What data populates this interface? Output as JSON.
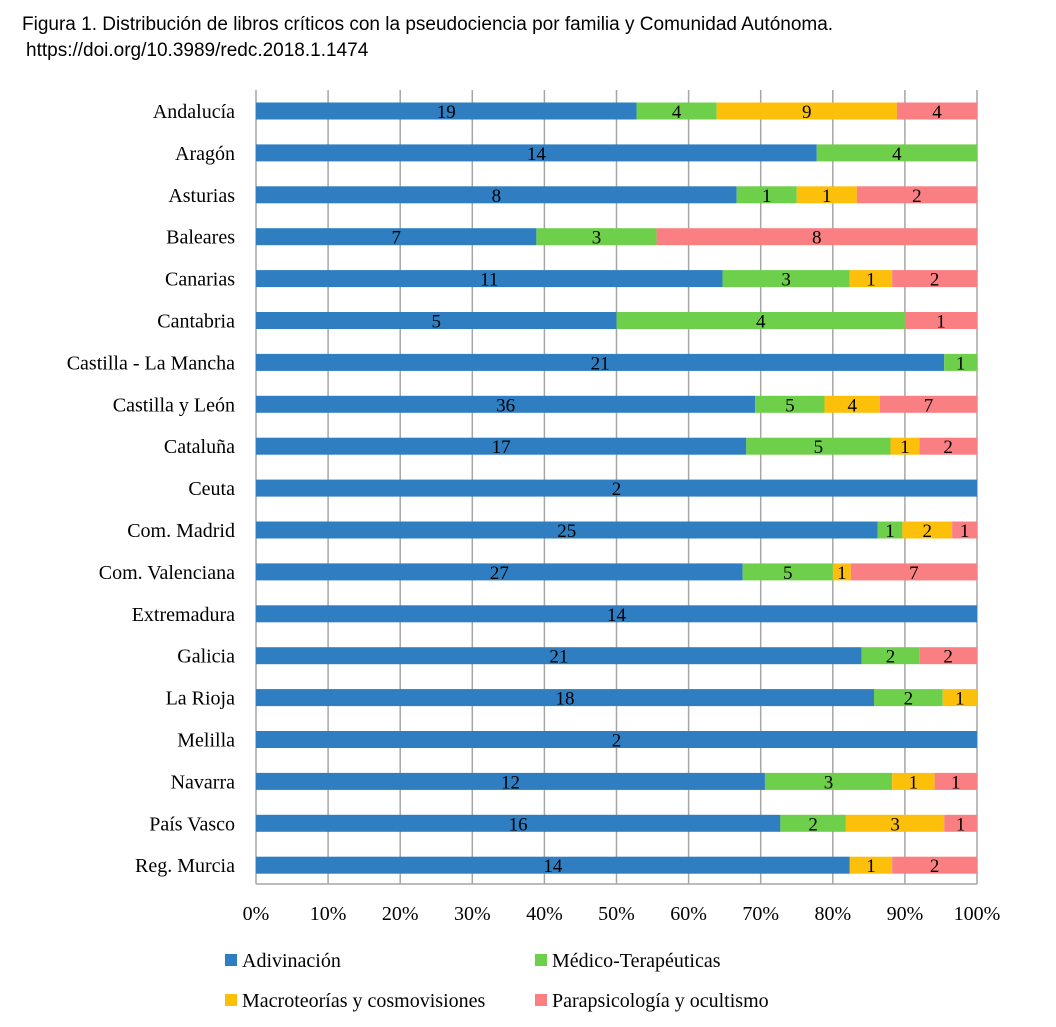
{
  "chart_data": {
    "type": "bar",
    "orientation": "horizontal",
    "stacked": "percent",
    "title": "Figura 1. Distribución de libros críticos con la pseudociencia por familia y Comunidad Autónoma.",
    "subtitle": "https://doi.org/10.3989/redc.2018.1.1474",
    "categories": [
      "Andalucía",
      "Aragón",
      "Asturias",
      "Baleares",
      "Canarias",
      "Cantabria",
      "Castilla - La Mancha",
      "Castilla y León",
      "Cataluña",
      "Ceuta",
      "Com. Madrid",
      "Com. Valenciana",
      "Extremadura",
      "Galicia",
      "La Rioja",
      "Melilla",
      "Navarra",
      "País Vasco",
      "Reg. Murcia"
    ],
    "series": [
      {
        "name": "Adivinación",
        "color": "#2e7ec1",
        "values": [
          19,
          14,
          8,
          7,
          11,
          5,
          21,
          36,
          17,
          2,
          25,
          27,
          14,
          21,
          18,
          2,
          12,
          16,
          14
        ]
      },
      {
        "name": "Médico-Terapéuticas",
        "color": "#6dcf4a",
        "values": [
          4,
          4,
          1,
          3,
          3,
          4,
          1,
          5,
          5,
          0,
          1,
          5,
          0,
          2,
          2,
          0,
          3,
          2,
          0
        ]
      },
      {
        "name": "Macroteorías y cosmovisiones",
        "color": "#fcc00b",
        "values": [
          9,
          0,
          1,
          0,
          1,
          0,
          0,
          4,
          1,
          0,
          2,
          1,
          0,
          0,
          1,
          0,
          1,
          3,
          1
        ]
      },
      {
        "name": "Parapsicología y ocultismo",
        "color": "#f97f82",
        "values": [
          4,
          0,
          2,
          8,
          2,
          1,
          0,
          7,
          2,
          0,
          1,
          7,
          0,
          2,
          0,
          0,
          1,
          1,
          2
        ]
      }
    ],
    "xlim": [
      0,
      100
    ],
    "x_ticks": [
      "0%",
      "10%",
      "20%",
      "30%",
      "40%",
      "50%",
      "60%",
      "70%",
      "80%",
      "90%",
      "100%"
    ],
    "grid": "vertical",
    "legend_position": "bottom"
  }
}
